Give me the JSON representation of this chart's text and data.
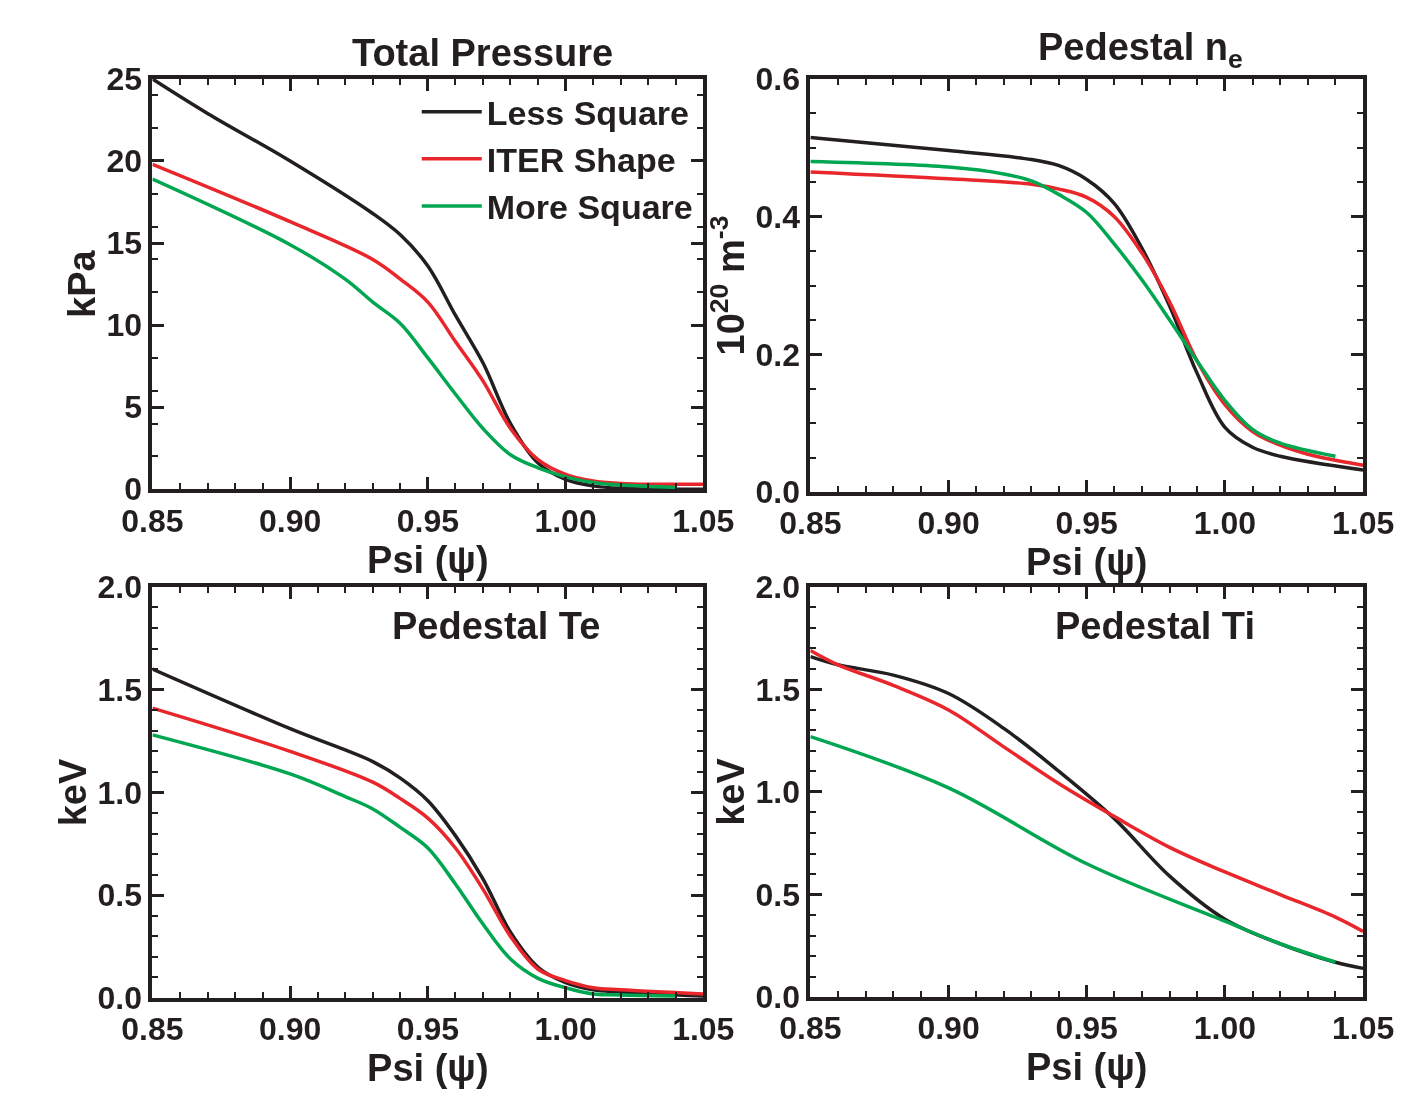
{
  "chart_data": [
    {
      "type": "line",
      "title": "Total Pressure",
      "xlabel": "Psi (ψ)",
      "ylabel": "kPa",
      "legend": "top right",
      "marker": "none",
      "line_style": "solid",
      "xlim": [
        0.85,
        1.05
      ],
      "xticks": [
        {
          "value": 0.85,
          "label": "0.85"
        },
        {
          "value": 0.9,
          "label": "0.90"
        },
        {
          "value": 0.95,
          "label": "0.95"
        },
        {
          "value": 1.0,
          "label": "1.00"
        },
        {
          "value": 1.05,
          "label": "1.05"
        }
      ],
      "ylim": [
        0,
        25
      ],
      "yticks": [
        0,
        5,
        10,
        15,
        20,
        25
      ],
      "series": [
        {
          "name": "Less Square",
          "color": "#231f20",
          "x": [
            0.85,
            0.87,
            0.9,
            0.93,
            0.94,
            0.95,
            0.96,
            0.97,
            0.98,
            0.99,
            1.0,
            1.01,
            1.02,
            1.05
          ],
          "values": [
            25,
            22.9,
            20,
            16.8,
            15.5,
            13.6,
            10.6,
            7.7,
            4.0,
            1.6,
            0.6,
            0.2,
            0.05,
            0.0
          ]
        },
        {
          "name": "ITER Shape",
          "color": "#e8262b",
          "x": [
            0.85,
            0.9,
            0.93,
            0.94,
            0.95,
            0.96,
            0.97,
            0.98,
            0.99,
            1.0,
            1.01,
            1.02,
            1.03,
            1.05
          ],
          "values": [
            19.8,
            16.3,
            14.0,
            12.8,
            11.4,
            9.0,
            6.6,
            3.7,
            1.8,
            0.9,
            0.5,
            0.35,
            0.3,
            0.3
          ]
        },
        {
          "name": "More Square",
          "color": "#00a650",
          "x": [
            0.85,
            0.9,
            0.92,
            0.93,
            0.94,
            0.95,
            0.96,
            0.97,
            0.98,
            0.99,
            1.0,
            1.01,
            1.02,
            1.04
          ],
          "values": [
            18.9,
            14.9,
            12.8,
            11.4,
            10.1,
            8.0,
            5.8,
            3.7,
            2.1,
            1.3,
            0.75,
            0.4,
            0.25,
            0.1
          ]
        }
      ]
    },
    {
      "type": "line",
      "title": "Pedestal n$_{e}$",
      "xlabel": "Psi (ψ)",
      "ylabel": "10$^{20}$ m$^{-3}$",
      "marker": "none",
      "line_style": "solid",
      "xlim": [
        0.85,
        1.05
      ],
      "xticks": [
        {
          "value": 0.85,
          "label": "0.85"
        },
        {
          "value": 0.9,
          "label": "0.90"
        },
        {
          "value": 0.95,
          "label": "0.95"
        },
        {
          "value": 1.0,
          "label": "1.00"
        },
        {
          "value": 1.05,
          "label": "1.05"
        }
      ],
      "ylim": [
        0,
        0.6
      ],
      "yticks": [
        {
          "value": 0,
          "label": "0.0"
        },
        {
          "value": 0.2,
          "label": "0.2"
        },
        {
          "value": 0.4,
          "label": "0.4"
        },
        {
          "value": 0.6,
          "label": "0.6"
        }
      ],
      "series": [
        {
          "color": "#231f20",
          "x": [
            0.85,
            0.9,
            0.93,
            0.94,
            0.95,
            0.96,
            0.97,
            0.98,
            0.99,
            1.0,
            1.01,
            1.02,
            1.05
          ],
          "values": [
            0.515,
            0.496,
            0.483,
            0.474,
            0.454,
            0.419,
            0.354,
            0.27,
            0.172,
            0.094,
            0.065,
            0.052,
            0.032
          ]
        },
        {
          "color": "#e8262b",
          "x": [
            0.85,
            0.9,
            0.93,
            0.94,
            0.95,
            0.96,
            0.97,
            0.98,
            0.99,
            1.0,
            1.01,
            1.02,
            1.03,
            1.05
          ],
          "values": [
            0.465,
            0.455,
            0.447,
            0.44,
            0.428,
            0.4,
            0.347,
            0.276,
            0.19,
            0.127,
            0.088,
            0.068,
            0.055,
            0.039
          ]
        },
        {
          "color": "#00a650",
          "x": [
            0.85,
            0.9,
            0.92,
            0.93,
            0.94,
            0.95,
            0.96,
            0.97,
            0.98,
            0.99,
            1.0,
            1.01,
            1.02,
            1.04
          ],
          "values": [
            0.48,
            0.472,
            0.462,
            0.452,
            0.432,
            0.406,
            0.36,
            0.308,
            0.25,
            0.19,
            0.133,
            0.091,
            0.071,
            0.052
          ]
        }
      ]
    },
    {
      "type": "line",
      "title": "Pedestal Te",
      "xlabel": "Psi (ψ)",
      "ylabel": "keV",
      "marker": "none",
      "line_style": "solid",
      "xlim": [
        0.85,
        1.05
      ],
      "xticks": [
        {
          "value": 0.85,
          "label": "0.85"
        },
        {
          "value": 0.9,
          "label": "0.90"
        },
        {
          "value": 0.95,
          "label": "0.95"
        },
        {
          "value": 1.0,
          "label": "1.00"
        },
        {
          "value": 1.05,
          "label": "1.05"
        }
      ],
      "ylim": [
        0,
        2
      ],
      "yticks": [
        {
          "value": 0,
          "label": "0.0"
        },
        {
          "value": 0.5,
          "label": "0.5"
        },
        {
          "value": 1,
          "label": "1.0"
        },
        {
          "value": 1.5,
          "label": "1.5"
        },
        {
          "value": 2,
          "label": "2.0"
        }
      ],
      "series": [
        {
          "color": "#231f20",
          "x": [
            0.85,
            0.9,
            0.93,
            0.94,
            0.95,
            0.96,
            0.97,
            0.98,
            0.99,
            1.0,
            1.01,
            1.02,
            1.05
          ],
          "values": [
            1.6,
            1.31,
            1.15,
            1.07,
            0.96,
            0.79,
            0.58,
            0.32,
            0.15,
            0.075,
            0.04,
            0.03,
            0.01
          ]
        },
        {
          "color": "#e8262b",
          "x": [
            0.85,
            0.9,
            0.93,
            0.94,
            0.95,
            0.96,
            0.97,
            0.98,
            0.99,
            1.0,
            1.01,
            1.02,
            1.05
          ],
          "values": [
            1.41,
            1.2,
            1.05,
            0.97,
            0.875,
            0.73,
            0.53,
            0.3,
            0.14,
            0.085,
            0.05,
            0.04,
            0.02
          ]
        },
        {
          "color": "#00a650",
          "x": [
            0.85,
            0.9,
            0.92,
            0.93,
            0.94,
            0.95,
            0.96,
            0.97,
            0.98,
            0.99,
            1.0,
            1.01,
            1.02,
            1.04
          ],
          "values": [
            1.28,
            1.09,
            0.98,
            0.92,
            0.83,
            0.73,
            0.555,
            0.36,
            0.19,
            0.096,
            0.05,
            0.02,
            0.015,
            0.01
          ]
        }
      ]
    },
    {
      "type": "line",
      "title": "Pedestal Ti",
      "xlabel": "Psi (ψ)",
      "ylabel": "keV",
      "marker": "none",
      "line_style": "solid",
      "xlim": [
        0.85,
        1.05
      ],
      "xticks": [
        {
          "value": 0.85,
          "label": "0.85"
        },
        {
          "value": 0.9,
          "label": "0.90"
        },
        {
          "value": 0.95,
          "label": "0.95"
        },
        {
          "value": 1.0,
          "label": "1.00"
        },
        {
          "value": 1.05,
          "label": "1.05"
        }
      ],
      "ylim": [
        0,
        2
      ],
      "yticks": [
        {
          "value": 0,
          "label": "0.0"
        },
        {
          "value": 0.5,
          "label": "0.5"
        },
        {
          "value": 1,
          "label": "1.0"
        },
        {
          "value": 1.5,
          "label": "1.5"
        },
        {
          "value": 2,
          "label": "2.0"
        }
      ],
      "series": [
        {
          "color": "#231f20",
          "x": [
            0.85,
            0.86,
            0.88,
            0.9,
            0.92,
            0.94,
            0.96,
            0.98,
            1.0,
            1.02,
            1.04,
            1.05
          ],
          "values": [
            1.66,
            1.62,
            1.57,
            1.48,
            1.31,
            1.1,
            0.87,
            0.59,
            0.38,
            0.26,
            0.17,
            0.14
          ]
        },
        {
          "color": "#e8262b",
          "x": [
            0.85,
            0.86,
            0.88,
            0.9,
            0.92,
            0.94,
            0.96,
            0.98,
            1.0,
            1.02,
            1.04,
            1.05
          ],
          "values": [
            1.69,
            1.62,
            1.52,
            1.4,
            1.22,
            1.04,
            0.88,
            0.73,
            0.61,
            0.5,
            0.39,
            0.32
          ]
        },
        {
          "color": "#00a650",
          "x": [
            0.85,
            0.9,
            0.95,
            1.0,
            1.02,
            1.04
          ],
          "values": [
            1.27,
            1.02,
            0.65,
            0.37,
            0.26,
            0.17
          ]
        }
      ]
    }
  ]
}
